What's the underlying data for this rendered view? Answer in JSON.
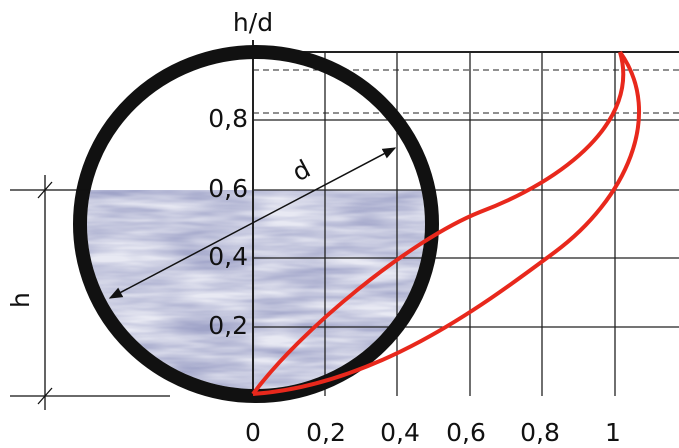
{
  "axis_title": "h/d",
  "y_ticks": [
    "0,2",
    "0,4",
    "0,6",
    "0,8"
  ],
  "x_ticks": [
    "0",
    "0,2",
    "0,4",
    "0,6",
    "0,8",
    "1"
  ],
  "labels": {
    "diameter": "d",
    "depth": "h"
  }
}
